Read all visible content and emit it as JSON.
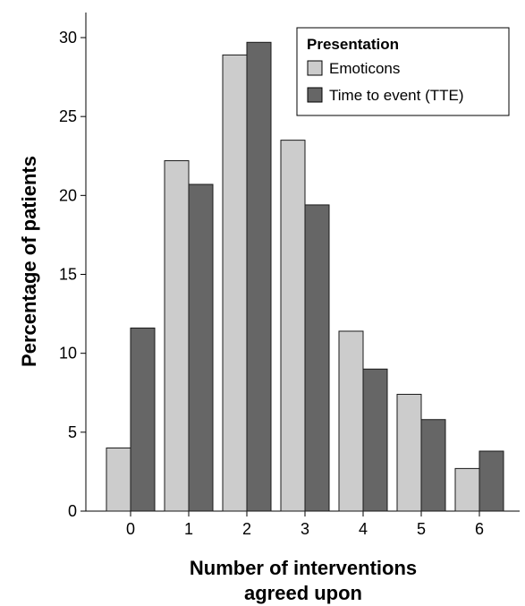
{
  "chart_data": {
    "type": "bar",
    "title": "",
    "xlabel": [
      "Number of interventions",
      "agreed upon"
    ],
    "ylabel": "Percentage of patients",
    "categories": [
      "0",
      "1",
      "2",
      "3",
      "4",
      "5",
      "6"
    ],
    "series": [
      {
        "name": "Emoticons",
        "values": [
          4.0,
          22.2,
          28.9,
          23.5,
          11.4,
          7.4,
          2.7
        ],
        "color": "#cccccc"
      },
      {
        "name": "Time to event (TTE)",
        "values": [
          11.6,
          20.7,
          29.7,
          19.4,
          9.0,
          5.8,
          3.8
        ],
        "color": "#666666"
      }
    ],
    "ylim": [
      0,
      30
    ],
    "yticks": [
      0,
      5,
      10,
      15,
      20,
      25,
      30
    ],
    "grid": false,
    "legend": {
      "title": "Presentation",
      "position": "top-right"
    }
  }
}
